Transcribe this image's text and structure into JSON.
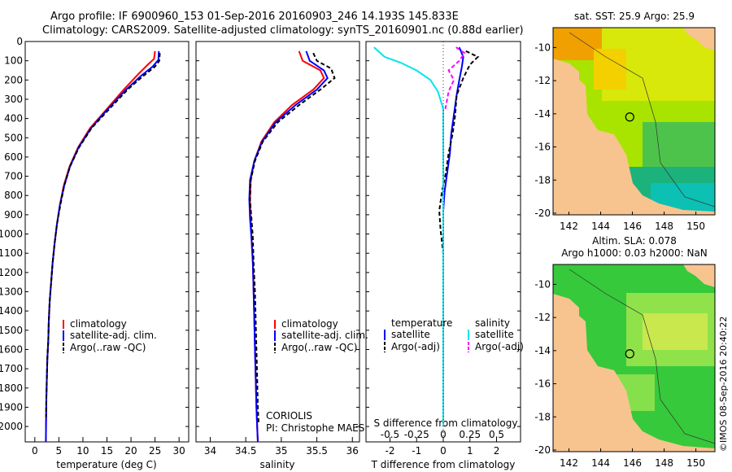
{
  "header": {
    "line1": "Argo profile: IF 6900960_153 01-Sep-2016 20160903_246 14.193S 145.833E",
    "line2": "Climatology: CARS2009. Satellite-adjusted climatology: synTS_20160901.nc (0.88d earlier)"
  },
  "colors": {
    "climatology": "#ff0000",
    "satellite": "#0000ff",
    "argo": "#000000",
    "satellite_salinity": "#00e5ee",
    "argo_salinity": "#ff00ff",
    "land": "#f7c490"
  },
  "side_text": "©IMOS 08-Sep-2016 20:40:22",
  "chart_data": [
    {
      "type": "line",
      "xlabel": "temperature (deg C)",
      "ylabel": "",
      "xlim": [
        -2,
        32
      ],
      "ylim": [
        2080,
        0
      ],
      "xticks": [
        0,
        5,
        10,
        15,
        20,
        25,
        30
      ],
      "yticks": [
        0,
        100,
        200,
        300,
        400,
        500,
        600,
        700,
        800,
        900,
        1000,
        1100,
        1200,
        1300,
        1400,
        1500,
        1600,
        1700,
        1800,
        1900,
        2000
      ],
      "legend": [
        "climatology",
        "satellite-adj. clim.",
        "Argo(..raw -QC)"
      ],
      "series": [
        {
          "name": "climatology",
          "points": [
            [
              25,
              50
            ],
            [
              24.8,
              90
            ],
            [
              23.5,
              120
            ],
            [
              21.5,
              170
            ],
            [
              18.5,
              250
            ],
            [
              15,
              350
            ],
            [
              11.5,
              450
            ],
            [
              9,
              550
            ],
            [
              7.2,
              650
            ],
            [
              6,
              750
            ],
            [
              5.2,
              850
            ],
            [
              4.6,
              950
            ],
            [
              4.1,
              1050
            ],
            [
              3.7,
              1150
            ],
            [
              3.4,
              1250
            ],
            [
              3.1,
              1350
            ],
            [
              2.9,
              1450
            ],
            [
              2.8,
              1550
            ],
            [
              2.6,
              1650
            ],
            [
              2.5,
              1750
            ],
            [
              2.4,
              1850
            ],
            [
              2.35,
              1950
            ],
            [
              2.3,
              2080
            ]
          ]
        },
        {
          "name": "satellite-adj. clim.",
          "points": [
            [
              25.8,
              50
            ],
            [
              25.7,
              95
            ],
            [
              24.5,
              130
            ],
            [
              22,
              180
            ],
            [
              19,
              250
            ],
            [
              15.2,
              350
            ],
            [
              11.7,
              450
            ],
            [
              9.1,
              550
            ],
            [
              7.3,
              650
            ],
            [
              6.1,
              750
            ],
            [
              5.2,
              850
            ],
            [
              4.6,
              950
            ],
            [
              4.1,
              1050
            ],
            [
              3.7,
              1150
            ],
            [
              3.4,
              1250
            ],
            [
              3.1,
              1350
            ],
            [
              2.9,
              1450
            ],
            [
              2.8,
              1550
            ],
            [
              2.6,
              1650
            ],
            [
              2.5,
              1750
            ],
            [
              2.4,
              1850
            ],
            [
              2.35,
              1950
            ],
            [
              2.3,
              2080
            ]
          ]
        },
        {
          "name": "Argo(..raw -QC)",
          "points": [
            [
              26,
              60
            ],
            [
              25.9,
              100
            ],
            [
              25,
              130
            ],
            [
              22.5,
              180
            ],
            [
              19.3,
              250
            ],
            [
              15.5,
              350
            ],
            [
              11.8,
              450
            ],
            [
              9.2,
              550
            ],
            [
              7.3,
              650
            ],
            [
              6.1,
              750
            ],
            [
              5.3,
              850
            ],
            [
              4.6,
              950
            ],
            [
              4.1,
              1050
            ],
            [
              3.7,
              1150
            ],
            [
              3.4,
              1250
            ],
            [
              3.1,
              1350
            ],
            [
              2.9,
              1450
            ],
            [
              2.8,
              1550
            ],
            [
              2.6,
              1650
            ],
            [
              2.5,
              1750
            ],
            [
              2.4,
              1850
            ],
            [
              2.35,
              1950
            ]
          ]
        }
      ]
    },
    {
      "type": "line",
      "xlabel": "salinity",
      "ylabel": "",
      "xlim": [
        33.8,
        36.1
      ],
      "ylim": [
        2080,
        0
      ],
      "xticks": [
        34,
        34.5,
        35,
        35.5,
        36
      ],
      "legend": [
        "climatology",
        "satellite-adj. clim.",
        "Argo(..raw -QC)"
      ],
      "annotation": [
        "CORIOLIS",
        "PI: Christophe MAES"
      ],
      "series": [
        {
          "name": "climatology",
          "points": [
            [
              35.25,
              50
            ],
            [
              35.3,
              100
            ],
            [
              35.55,
              150
            ],
            [
              35.6,
              190
            ],
            [
              35.45,
              250
            ],
            [
              35.15,
              330
            ],
            [
              34.9,
              420
            ],
            [
              34.72,
              520
            ],
            [
              34.62,
              620
            ],
            [
              34.57,
              720
            ],
            [
              34.56,
              820
            ],
            [
              34.57,
              920
            ],
            [
              34.58,
              1020
            ],
            [
              34.6,
              1150
            ],
            [
              34.61,
              1300
            ],
            [
              34.62,
              1450
            ],
            [
              34.63,
              1600
            ],
            [
              34.64,
              1750
            ],
            [
              34.65,
              1900
            ],
            [
              34.66,
              2000
            ],
            [
              34.67,
              2080
            ]
          ]
        },
        {
          "name": "satellite-adj. clim.",
          "points": [
            [
              35.35,
              50
            ],
            [
              35.4,
              100
            ],
            [
              35.6,
              150
            ],
            [
              35.65,
              190
            ],
            [
              35.5,
              250
            ],
            [
              35.2,
              330
            ],
            [
              34.92,
              420
            ],
            [
              34.73,
              520
            ],
            [
              34.62,
              620
            ],
            [
              34.56,
              720
            ],
            [
              34.55,
              820
            ],
            [
              34.56,
              920
            ],
            [
              34.58,
              1020
            ],
            [
              34.6,
              1150
            ],
            [
              34.61,
              1300
            ],
            [
              34.62,
              1450
            ],
            [
              34.63,
              1600
            ],
            [
              34.64,
              1750
            ],
            [
              34.65,
              1900
            ],
            [
              34.66,
              2000
            ],
            [
              34.67,
              2080
            ]
          ]
        },
        {
          "name": "Argo(..raw -QC)",
          "points": [
            [
              35.45,
              60
            ],
            [
              35.5,
              100
            ],
            [
              35.7,
              140
            ],
            [
              35.75,
              190
            ],
            [
              35.55,
              250
            ],
            [
              35.25,
              330
            ],
            [
              34.95,
              420
            ],
            [
              34.74,
              520
            ],
            [
              34.63,
              620
            ],
            [
              34.57,
              720
            ],
            [
              34.56,
              820
            ],
            [
              34.58,
              920
            ],
            [
              34.6,
              1020
            ],
            [
              34.61,
              1150
            ],
            [
              34.63,
              1300
            ],
            [
              34.64,
              1450
            ],
            [
              34.65,
              1600
            ],
            [
              34.66,
              1750
            ],
            [
              34.67,
              1900
            ],
            [
              34.68,
              1980
            ]
          ]
        }
      ]
    },
    {
      "type": "line",
      "xlabel": "T difference from climatology",
      "x2label": "S difference from climatology",
      "xlim": [
        -2.9,
        2.9
      ],
      "x2lim": [
        -0.725,
        0.725
      ],
      "ylim": [
        2080,
        0
      ],
      "xticks": [
        -2,
        -1,
        0,
        1,
        2
      ],
      "x2ticks": [
        -0.5,
        -0.25,
        0,
        0.25,
        0.5
      ],
      "legend_titles": [
        "temperature",
        "salinity"
      ],
      "legend": [
        "satellite",
        "Argo(-adj)",
        "satellite",
        "Argo(-adj)"
      ],
      "series": [
        {
          "name": "satellite",
          "variable": "temperature",
          "points": [
            [
              0.6,
              30
            ],
            [
              0.75,
              80
            ],
            [
              0.7,
              130
            ],
            [
              0.6,
              200
            ],
            [
              0.5,
              280
            ],
            [
              0.4,
              380
            ],
            [
              0.3,
              480
            ],
            [
              0.25,
              580
            ],
            [
              0.15,
              680
            ],
            [
              0.05,
              780
            ],
            [
              0.0,
              880
            ],
            [
              0.0,
              1000
            ],
            [
              0.0,
              1200
            ],
            [
              0.0,
              1500
            ],
            [
              0.0,
              2000
            ]
          ]
        },
        {
          "name": "Argo(-adj)",
          "variable": "temperature",
          "points": [
            [
              0.85,
              50
            ],
            [
              1.3,
              80
            ],
            [
              1.0,
              120
            ],
            [
              0.75,
              190
            ],
            [
              0.5,
              280
            ],
            [
              0.45,
              380
            ],
            [
              0.35,
              480
            ],
            [
              0.2,
              580
            ],
            [
              0.1,
              680
            ],
            [
              -0.05,
              780
            ],
            [
              -0.15,
              880
            ],
            [
              -0.1,
              980
            ],
            [
              0.0,
              1100
            ],
            [
              0.0,
              1400
            ],
            [
              0.0,
              1950
            ]
          ]
        },
        {
          "name": "satellite",
          "variable": "salinity",
          "points": [
            [
              -0.65,
              30
            ],
            [
              -0.55,
              80
            ],
            [
              -0.4,
              110
            ],
            [
              -0.25,
              150
            ],
            [
              -0.12,
              200
            ],
            [
              -0.05,
              260
            ],
            [
              0.0,
              350
            ],
            [
              0.0,
              2000
            ]
          ]
        },
        {
          "name": "Argo(-adj)",
          "variable": "salinity",
          "points": [
            [
              0.12,
              30
            ],
            [
              0.2,
              60
            ],
            [
              0.15,
              100
            ],
            [
              0.05,
              150
            ],
            [
              0.1,
              200
            ],
            [
              0.05,
              260
            ],
            [
              0.02,
              350
            ]
          ]
        }
      ]
    },
    {
      "type": "heatmap",
      "title": "sat. SST: 25.9 Argo: 25.9",
      "xlim": [
        141,
        151.2
      ],
      "ylim": [
        -20.1,
        -8.8
      ],
      "xticks": [
        142,
        144,
        146,
        148,
        150
      ],
      "yticks": [
        -10,
        -12,
        -14,
        -16,
        -18,
        -20
      ],
      "profile_location": [
        145.833,
        -14.193
      ]
    },
    {
      "type": "heatmap",
      "title": "Altim. SLA: 0.078",
      "subtitle": "Argo h1000: 0.03 h2000: NaN",
      "xlim": [
        141,
        151.2
      ],
      "ylim": [
        -20.1,
        -8.8
      ],
      "xticks": [
        142,
        144,
        146,
        148,
        150
      ],
      "yticks": [
        -10,
        -12,
        -14,
        -16,
        -18,
        -20
      ],
      "profile_location": [
        145.833,
        -14.193
      ]
    }
  ]
}
